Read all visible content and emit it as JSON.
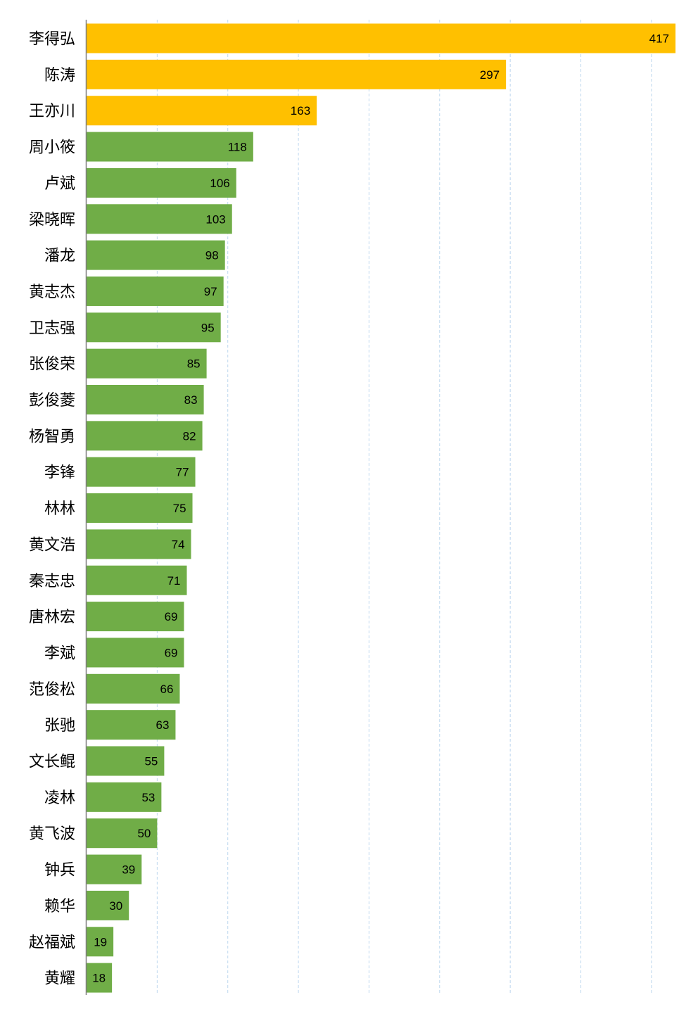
{
  "chart_data": {
    "type": "bar",
    "orientation": "horizontal",
    "title": "",
    "xlabel": "",
    "ylabel": "",
    "xlim": [
      0,
      420
    ],
    "grid": "vertical dashed",
    "legend": "none",
    "colors": {
      "highlight": "#FFC000",
      "default": "#70AD47",
      "grid": "#BDD7EE",
      "axis": "#7F7F7F"
    },
    "highlight_top": 3,
    "categories": [
      "李得弘",
      "陈涛",
      "王亦川",
      "周小筱",
      "卢斌",
      "梁晓晖",
      "潘龙",
      "黄志杰",
      "卫志强",
      "张俊荣",
      "彭俊菱",
      "杨智勇",
      "李锋",
      "林林",
      "黄文浩",
      "秦志忠",
      "唐林宏",
      "李斌",
      "范俊松",
      "张驰",
      "文长鲲",
      "凌林",
      "黄飞波",
      "钟兵",
      "赖华",
      "赵福斌",
      "黄耀"
    ],
    "values": [
      417,
      297,
      163,
      118,
      106,
      103,
      98,
      97,
      95,
      85,
      83,
      82,
      77,
      75,
      74,
      71,
      69,
      69,
      66,
      63,
      55,
      53,
      50,
      39,
      30,
      19,
      18
    ]
  }
}
